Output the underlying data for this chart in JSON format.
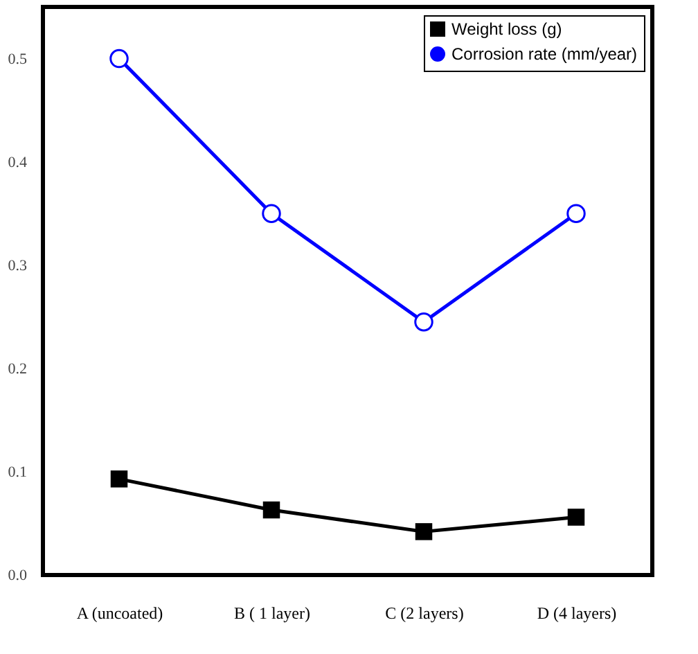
{
  "chart_data": {
    "type": "line",
    "categories": [
      "A (uncoated)",
      "B ( 1 layer)",
      "C (2 layers)",
      "D (4 layers)"
    ],
    "series": [
      {
        "name": "Weight loss (g)",
        "color": "#000000",
        "marker": "square",
        "values": [
          0.093,
          0.063,
          0.042,
          0.056
        ]
      },
      {
        "name": "Corrosion rate (mm/year)",
        "color": "#0000ff",
        "marker": "circle",
        "values": [
          0.5,
          0.35,
          0.245,
          0.35
        ]
      }
    ],
    "ylim": [
      0,
      0.55
    ],
    "yticks": [
      {
        "value": 0,
        "label": "0.0"
      },
      0.1,
      0.2,
      0.3,
      0.4,
      0.5
    ],
    "grid": false,
    "legend": "top right",
    "line_style": "solid"
  }
}
